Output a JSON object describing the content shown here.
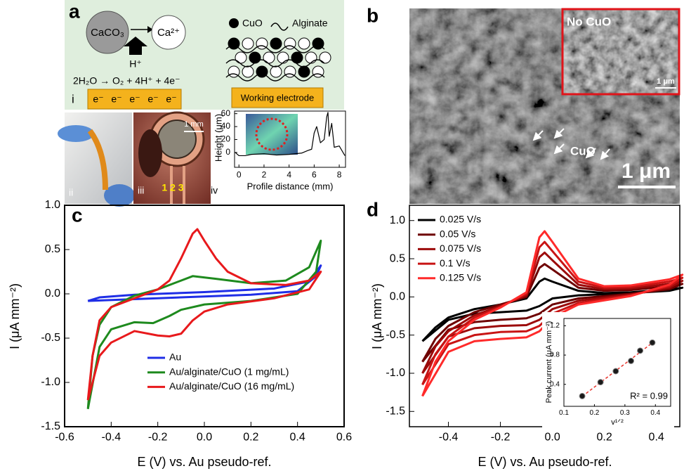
{
  "panel_a": {
    "label": "a",
    "reactant": "CaCO₃",
    "product": "Ca²⁺",
    "proton": "H⁺",
    "reaction": "2H₂O → O₂ + 4H⁺ + 4e⁻",
    "sub_i": "i",
    "electrons": [
      "e⁻",
      "e⁻",
      "e⁻",
      "e⁻",
      "e⁻"
    ],
    "legend": [
      "CuO",
      "Alginate"
    ],
    "electrode": "Working electrode",
    "sub_ii": "ii",
    "sub_iii": "iii",
    "scale_iii": "1 mm",
    "electrode_numbers": "1 2 3"
  },
  "panel_b": {
    "label": "b",
    "inset_title": "No CuO",
    "inset_scale": "1 μm",
    "arrow_label": "CuO",
    "scale": "1 μm"
  },
  "chart_data": [
    {
      "type": "line",
      "label": "iv",
      "x_label": "Profile distance (mm)",
      "y_label": "Height (μm)",
      "xlim": [
        -0.35,
        8.5
      ],
      "ylim": [
        -23,
        64
      ],
      "xticks": [
        0,
        2,
        4,
        6,
        8
      ],
      "yticks": [
        0,
        20,
        40,
        60
      ],
      "series": [
        {
          "color": "#000000",
          "x": [
            -0.3,
            0,
            0.5,
            1,
            2,
            3,
            4,
            5,
            5.5,
            5.8,
            6,
            6.2,
            6.5,
            6.8,
            7,
            7.1,
            7.2,
            7.4,
            7.6,
            8,
            8.3,
            8.45
          ],
          "values": [
            0,
            -5,
            -5,
            -3,
            -2,
            -4,
            -3,
            -1,
            3,
            5,
            30,
            40,
            15,
            20,
            55,
            62,
            25,
            45,
            8,
            10,
            0,
            -5
          ]
        }
      ]
    },
    {
      "type": "line",
      "label": "c",
      "x_label": "E (V) vs. Au pseudo-ref.",
      "y_label": "I (μA mm⁻²)",
      "xlim": [
        -0.6,
        0.6
      ],
      "ylim": [
        -1.5,
        1.0
      ],
      "xticks": [
        -0.6,
        -0.4,
        -0.2,
        {
          "value": 0,
          "label": "0.0"
        },
        0.2,
        0.4,
        0.6
      ],
      "yticks": [
        -1.5,
        {
          "value": -1,
          "label": "-1.0"
        },
        -0.5,
        {
          "value": 0,
          "label": "0.0"
        },
        0.5,
        {
          "value": 1,
          "label": "1.0"
        }
      ],
      "legend": "lower center",
      "series": [
        {
          "name": "Au",
          "color": "#1f2ee6",
          "x": [
            -0.5,
            -0.45,
            -0.3,
            0,
            0.3,
            0.45,
            0.5,
            0.48,
            0.4,
            0.2,
            0,
            -0.3,
            -0.5
          ],
          "values": [
            -0.08,
            -0.04,
            -0.01,
            0.02,
            0.06,
            0.14,
            0.32,
            0.2,
            0.03,
            -0.01,
            -0.03,
            -0.06,
            -0.08
          ]
        },
        {
          "name": "Au/alginate/CuO (1 mg/mL)",
          "color": "#1e8a1e",
          "x": [
            -0.5,
            -0.48,
            -0.45,
            -0.4,
            -0.3,
            -0.2,
            -0.1,
            -0.05,
            0.05,
            0.2,
            0.35,
            0.45,
            0.5,
            0.48,
            0.4,
            0.2,
            0,
            -0.1,
            -0.15,
            -0.22,
            -0.3,
            -0.4,
            -0.45,
            -0.5
          ],
          "values": [
            -1.3,
            -0.7,
            -0.35,
            -0.15,
            -0.02,
            0.05,
            0.15,
            0.2,
            0.17,
            0.12,
            0.15,
            0.3,
            0.6,
            0.25,
            0,
            -0.08,
            -0.12,
            -0.18,
            -0.25,
            -0.33,
            -0.32,
            -0.4,
            -0.6,
            -1.3
          ]
        },
        {
          "name": "Au/alginate/CuO (16 mg/mL)",
          "color": "#e8191c",
          "x": [
            -0.5,
            -0.48,
            -0.45,
            -0.4,
            -0.3,
            -0.2,
            -0.15,
            -0.1,
            -0.05,
            -0.03,
            0,
            0.05,
            0.1,
            0.2,
            0.35,
            0.45,
            0.5,
            0.45,
            0.3,
            0.1,
            0,
            -0.05,
            -0.1,
            -0.15,
            -0.2,
            -0.3,
            -0.4,
            -0.45,
            -0.5
          ],
          "values": [
            -1.2,
            -0.7,
            -0.3,
            -0.15,
            -0.05,
            0.05,
            0.15,
            0.4,
            0.68,
            0.73,
            0.6,
            0.4,
            0.25,
            0.12,
            0.1,
            0.15,
            0.25,
            0.05,
            -0.05,
            -0.12,
            -0.2,
            -0.3,
            -0.45,
            -0.48,
            -0.47,
            -0.42,
            -0.55,
            -0.7,
            -1.2
          ]
        }
      ]
    },
    {
      "type": "line",
      "label": "d",
      "x_label": "E (V) vs. Au pseudo-ref.",
      "y_label": "I (μA mm⁻²)",
      "xlim": [
        -0.55,
        0.49
      ],
      "ylim": [
        -1.7,
        1.2
      ],
      "xticks": [
        -0.4,
        -0.2,
        {
          "value": 0,
          "label": "0.0"
        },
        0.2,
        0.4
      ],
      "yticks": [
        -1.5,
        {
          "value": -1,
          "label": "-1.0"
        },
        -0.5,
        {
          "value": 0,
          "label": "0.0"
        },
        0.5,
        {
          "value": 1,
          "label": "1.0"
        }
      ],
      "legend": "upper left",
      "series": [
        {
          "name": "0.025 V/s",
          "color": "#000000",
          "x": [
            -0.5,
            -0.45,
            -0.4,
            -0.3,
            -0.2,
            -0.1,
            -0.05,
            -0.03,
            0,
            0.1,
            0.2,
            0.3,
            0.45,
            0.5,
            0.45,
            0.3,
            0.1,
            0,
            -0.05,
            -0.1,
            -0.2,
            -0.3,
            -0.4,
            -0.5
          ],
          "values": [
            -0.58,
            -0.4,
            -0.27,
            -0.16,
            -0.1,
            -0.02,
            0.2,
            0.24,
            0.2,
            0.08,
            0.05,
            0.06,
            0.1,
            0.12,
            0.08,
            0.05,
            0.02,
            -0.02,
            -0.12,
            -0.18,
            -0.2,
            -0.22,
            -0.3,
            -0.58
          ]
        },
        {
          "name": "0.05 V/s",
          "color": "#6e0000",
          "x": [
            -0.5,
            -0.45,
            -0.4,
            -0.3,
            -0.2,
            -0.1,
            -0.05,
            -0.03,
            0,
            0.1,
            0.2,
            0.3,
            0.45,
            0.5,
            0.45,
            0.3,
            0.1,
            0,
            -0.05,
            -0.1,
            -0.2,
            -0.3,
            -0.4,
            -0.5
          ],
          "values": [
            -0.85,
            -0.55,
            -0.38,
            -0.2,
            -0.1,
            0,
            0.38,
            0.43,
            0.36,
            0.12,
            0.08,
            0.09,
            0.14,
            0.17,
            0.1,
            0.04,
            -0.02,
            -0.1,
            -0.22,
            -0.28,
            -0.3,
            -0.33,
            -0.43,
            -0.85
          ]
        },
        {
          "name": "0.075 V/s",
          "color": "#9c0a0a",
          "x": [
            -0.5,
            -0.45,
            -0.4,
            -0.3,
            -0.2,
            -0.1,
            -0.05,
            -0.03,
            0,
            0.1,
            0.2,
            0.3,
            0.45,
            0.5,
            0.45,
            0.3,
            0.1,
            0,
            -0.05,
            -0.1,
            -0.2,
            -0.3,
            -0.4,
            -0.5
          ],
          "values": [
            -1.0,
            -0.65,
            -0.45,
            -0.24,
            -0.12,
            0.02,
            0.52,
            0.58,
            0.48,
            0.16,
            0.1,
            0.11,
            0.17,
            0.21,
            0.12,
            0.03,
            -0.05,
            -0.16,
            -0.3,
            -0.37,
            -0.38,
            -0.41,
            -0.52,
            -1.0
          ]
        },
        {
          "name": "0.1 V/s",
          "color": "#c81414",
          "x": [
            -0.5,
            -0.45,
            -0.4,
            -0.3,
            -0.2,
            -0.1,
            -0.05,
            -0.03,
            0,
            0.1,
            0.2,
            0.3,
            0.45,
            0.5,
            0.45,
            0.3,
            0.1,
            0,
            -0.05,
            -0.1,
            -0.2,
            -0.3,
            -0.4,
            -0.5
          ],
          "values": [
            -1.15,
            -0.75,
            -0.52,
            -0.27,
            -0.13,
            0.04,
            0.65,
            0.72,
            0.6,
            0.2,
            0.12,
            0.13,
            0.2,
            0.25,
            0.14,
            0.02,
            -0.08,
            -0.22,
            -0.38,
            -0.45,
            -0.46,
            -0.5,
            -0.62,
            -1.15
          ]
        },
        {
          "name": "0.125 V/s",
          "color": "#ff2a2a",
          "x": [
            -0.5,
            -0.45,
            -0.4,
            -0.3,
            -0.2,
            -0.1,
            -0.05,
            -0.03,
            0,
            0.1,
            0.2,
            0.3,
            0.45,
            0.5,
            0.45,
            0.3,
            0.1,
            0,
            -0.05,
            -0.1,
            -0.2,
            -0.3,
            -0.4,
            -0.5
          ],
          "values": [
            -1.3,
            -0.85,
            -0.58,
            -0.3,
            -0.14,
            0.06,
            0.78,
            0.86,
            0.72,
            0.24,
            0.14,
            0.15,
            0.23,
            0.29,
            0.16,
            0.01,
            -0.1,
            -0.27,
            -0.45,
            -0.53,
            -0.55,
            -0.58,
            -0.72,
            -1.3
          ]
        }
      ]
    },
    {
      "type": "scatter",
      "x_label": "v¹ᐟ²",
      "y_label": "Peak current (μA mm⁻²)",
      "annotation": "R² = 0.99",
      "xlim": [
        0.1,
        0.45
      ],
      "ylim": [
        0.1,
        1.3
      ],
      "xticks": [
        0.1,
        0.2,
        0.3,
        0.4
      ],
      "yticks": [
        0.4,
        0.8,
        1.2
      ],
      "fit_color": "#e8352e",
      "series": [
        {
          "color": "#1a1a1a",
          "x": [
            0.16,
            0.22,
            0.27,
            0.32,
            0.35,
            0.39
          ],
          "values": [
            0.24,
            0.43,
            0.58,
            0.72,
            0.86,
            0.97
          ]
        }
      ]
    }
  ]
}
